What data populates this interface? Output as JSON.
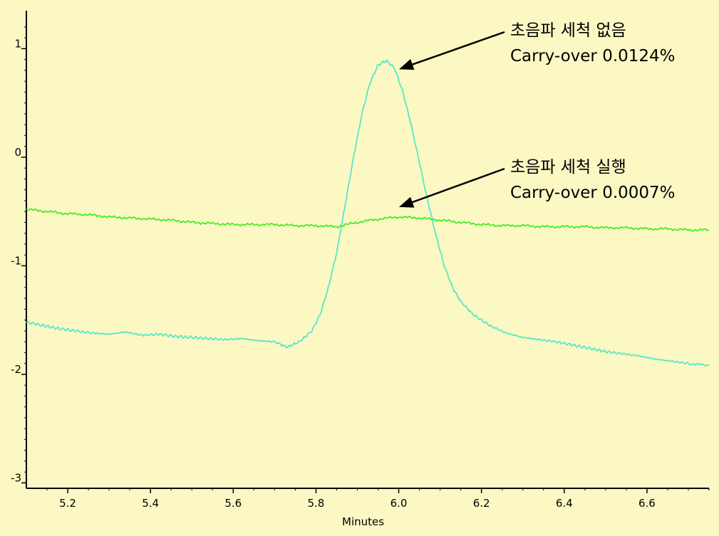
{
  "colors": {
    "background": "#fbf8c4",
    "series_without_sonication": "#55e8c8",
    "series_with_sonication": "#44ee22",
    "axis": "#000000"
  },
  "annotations": [
    {
      "line1": "초음파 세척 없음",
      "line2": "Carry-over 0.0124%",
      "points_to": {
        "x": 5.98,
        "y": 0.85
      }
    },
    {
      "line1": "초음파 세척 실행",
      "line2": "Carry-over 0.0007%",
      "points_to": {
        "x": 5.98,
        "y": -0.42
      }
    }
  ],
  "chart_data": {
    "type": "line",
    "xlabel": "Minutes",
    "ylabel": "",
    "xlim": [
      5.1,
      6.75
    ],
    "ylim": [
      -3.05,
      1.35
    ],
    "x_ticks": [
      "5.2",
      "5.4",
      "5.6",
      "5.8",
      "6.0",
      "6.2",
      "6.4",
      "6.6"
    ],
    "y_ticks": [
      "1",
      "0",
      "-1",
      "-2",
      "-3"
    ],
    "grid": false,
    "series": [
      {
        "color": "#55e8c8",
        "x": [
          5.1,
          5.14,
          5.18,
          5.22,
          5.26,
          5.3,
          5.34,
          5.38,
          5.42,
          5.46,
          5.5,
          5.54,
          5.58,
          5.62,
          5.66,
          5.7,
          5.73,
          5.76,
          5.79,
          5.81,
          5.83,
          5.85,
          5.87,
          5.89,
          5.91,
          5.93,
          5.95,
          5.97,
          5.99,
          6.01,
          6.03,
          6.05,
          6.07,
          6.09,
          6.11,
          6.13,
          6.15,
          6.18,
          6.22,
          6.26,
          6.3,
          6.34,
          6.38,
          6.42,
          6.46,
          6.5,
          6.54,
          6.58,
          6.62,
          6.66,
          6.7,
          6.75
        ],
        "y": [
          -1.52,
          -1.55,
          -1.58,
          -1.6,
          -1.62,
          -1.63,
          -1.61,
          -1.64,
          -1.63,
          -1.65,
          -1.66,
          -1.67,
          -1.68,
          -1.67,
          -1.69,
          -1.7,
          -1.75,
          -1.7,
          -1.6,
          -1.45,
          -1.2,
          -0.88,
          -0.45,
          -0.02,
          0.38,
          0.68,
          0.85,
          0.89,
          0.82,
          0.6,
          0.3,
          -0.05,
          -0.4,
          -0.72,
          -1.0,
          -1.2,
          -1.33,
          -1.45,
          -1.55,
          -1.62,
          -1.66,
          -1.68,
          -1.7,
          -1.73,
          -1.76,
          -1.79,
          -1.81,
          -1.83,
          -1.86,
          -1.88,
          -1.9,
          -1.92
        ]
      },
      {
        "color": "#44ee22",
        "x": [
          5.1,
          5.15,
          5.2,
          5.25,
          5.3,
          5.35,
          5.4,
          5.45,
          5.5,
          5.55,
          5.6,
          5.65,
          5.7,
          5.75,
          5.8,
          5.85,
          5.9,
          5.95,
          6.0,
          6.05,
          6.1,
          6.15,
          6.2,
          6.25,
          6.3,
          6.35,
          6.4,
          6.45,
          6.5,
          6.55,
          6.6,
          6.65,
          6.7,
          6.75
        ],
        "y": [
          -0.48,
          -0.5,
          -0.52,
          -0.53,
          -0.55,
          -0.56,
          -0.57,
          -0.58,
          -0.6,
          -0.61,
          -0.62,
          -0.62,
          -0.62,
          -0.63,
          -0.63,
          -0.64,
          -0.6,
          -0.57,
          -0.55,
          -0.56,
          -0.58,
          -0.6,
          -0.62,
          -0.63,
          -0.63,
          -0.64,
          -0.64,
          -0.64,
          -0.65,
          -0.65,
          -0.66,
          -0.66,
          -0.67,
          -0.67
        ]
      }
    ]
  }
}
